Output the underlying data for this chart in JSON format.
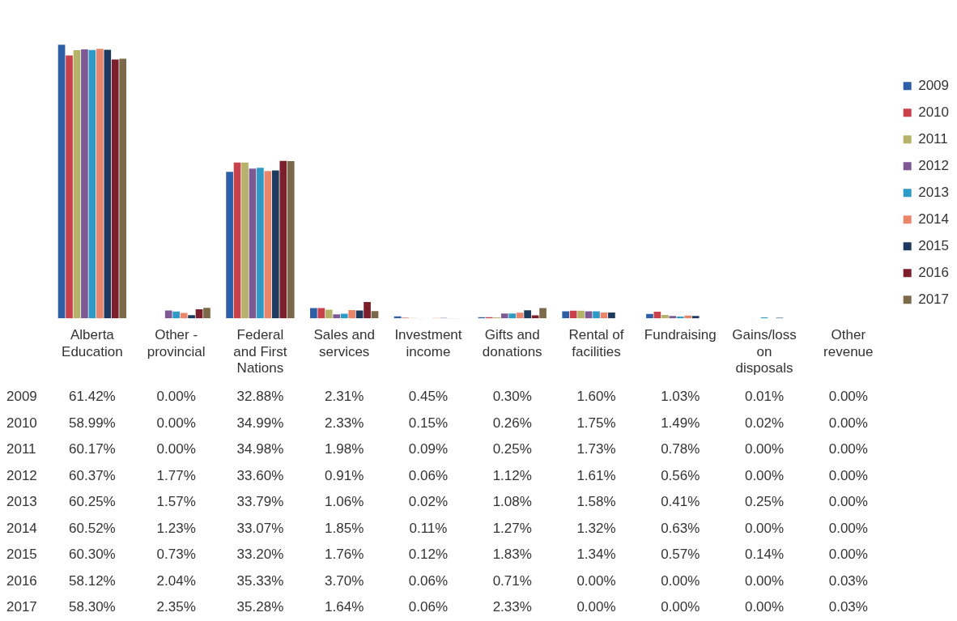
{
  "chart_data": {
    "type": "bar",
    "categories": [
      "Alberta Education",
      "Other - provincial",
      "Federal and First Nations",
      "Sales and services",
      "Investment income",
      "Gifts and donations",
      "Rental of facilities",
      "Fundraising",
      "Gains/loss on disposals",
      "Other revenue"
    ],
    "legend": "right",
    "grid": false,
    "series": [
      {
        "name": "2009",
        "color": "#2e5fa6",
        "values": [
          61.42,
          0,
          32.88,
          2.31,
          0.45,
          0.3,
          1.6,
          1.03,
          0.01,
          0
        ],
        "value_labels": [
          "61.42%",
          "0.00%",
          "32.88%",
          "2.31%",
          "0.45%",
          "0.30%",
          "1.60%",
          "1.03%",
          "0.01%",
          "0.00%"
        ]
      },
      {
        "name": "2010",
        "color": "#c8414b",
        "values": [
          58.99,
          0,
          34.99,
          2.33,
          0.15,
          0.26,
          1.75,
          1.49,
          0.02,
          0
        ],
        "value_labels": [
          "58.99%",
          "0.00%",
          "34.99%",
          "2.33%",
          "0.15%",
          "0.26%",
          "1.75%",
          "1.49%",
          "0.02%",
          "0.00%"
        ]
      },
      {
        "name": "2011",
        "color": "#b5b36a",
        "values": [
          60.17,
          0,
          34.98,
          1.98,
          0.09,
          0.25,
          1.73,
          0.78,
          0,
          0
        ],
        "value_labels": [
          "60.17%",
          "0.00%",
          "34.98%",
          "1.98%",
          "0.09%",
          "0.25%",
          "1.73%",
          "0.78%",
          "0.00%",
          "0.00%"
        ]
      },
      {
        "name": "2012",
        "color": "#7d5a94",
        "values": [
          60.37,
          1.77,
          33.6,
          0.91,
          0.06,
          1.12,
          1.61,
          0.56,
          0,
          0
        ],
        "value_labels": [
          "60.37%",
          "1.77%",
          "33.60%",
          "0.91%",
          "0.06%",
          "1.12%",
          "1.61%",
          "0.56%",
          "0.00%",
          "0.00%"
        ]
      },
      {
        "name": "2013",
        "color": "#2f9ac6",
        "values": [
          60.25,
          1.57,
          33.79,
          1.06,
          0.02,
          1.08,
          1.58,
          0.41,
          0.25,
          0
        ],
        "value_labels": [
          "60.25%",
          "1.57%",
          "33.79%",
          "1.06%",
          "0.02%",
          "1.08%",
          "1.58%",
          "0.41%",
          "0.25%",
          "0.00%"
        ]
      },
      {
        "name": "2014",
        "color": "#e8856a",
        "values": [
          60.52,
          1.23,
          33.07,
          1.85,
          0.11,
          1.27,
          1.32,
          0.63,
          0,
          0
        ],
        "value_labels": [
          "60.52%",
          "1.23%",
          "33.07%",
          "1.85%",
          "0.11%",
          "1.27%",
          "1.32%",
          "0.63%",
          "0.00%",
          "0.00%"
        ]
      },
      {
        "name": "2015",
        "color": "#1f3a5f",
        "values": [
          60.3,
          0.73,
          33.2,
          1.76,
          0.12,
          1.83,
          1.34,
          0.57,
          0.14,
          0
        ],
        "value_labels": [
          "60.30%",
          "0.73%",
          "33.20%",
          "1.76%",
          "0.12%",
          "1.83%",
          "1.34%",
          "0.57%",
          "0.14%",
          "0.00%"
        ]
      },
      {
        "name": "2016",
        "color": "#7a1f2b",
        "values": [
          58.12,
          2.04,
          35.33,
          3.7,
          0.06,
          0.71,
          0,
          0,
          0,
          0.03
        ],
        "value_labels": [
          "58.12%",
          "2.04%",
          "35.33%",
          "3.70%",
          "0.06%",
          "0.71%",
          "0.00%",
          "0.00%",
          "0.00%",
          "0.03%"
        ]
      },
      {
        "name": "2017",
        "color": "#7a6a4a",
        "values": [
          58.3,
          2.35,
          35.28,
          1.64,
          0.06,
          2.33,
          0,
          0,
          0,
          0.03
        ],
        "value_labels": [
          "58.30%",
          "2.35%",
          "35.28%",
          "1.64%",
          "0.06%",
          "2.33%",
          "0.00%",
          "0.00%",
          "0.00%",
          "0.03%"
        ]
      }
    ]
  }
}
